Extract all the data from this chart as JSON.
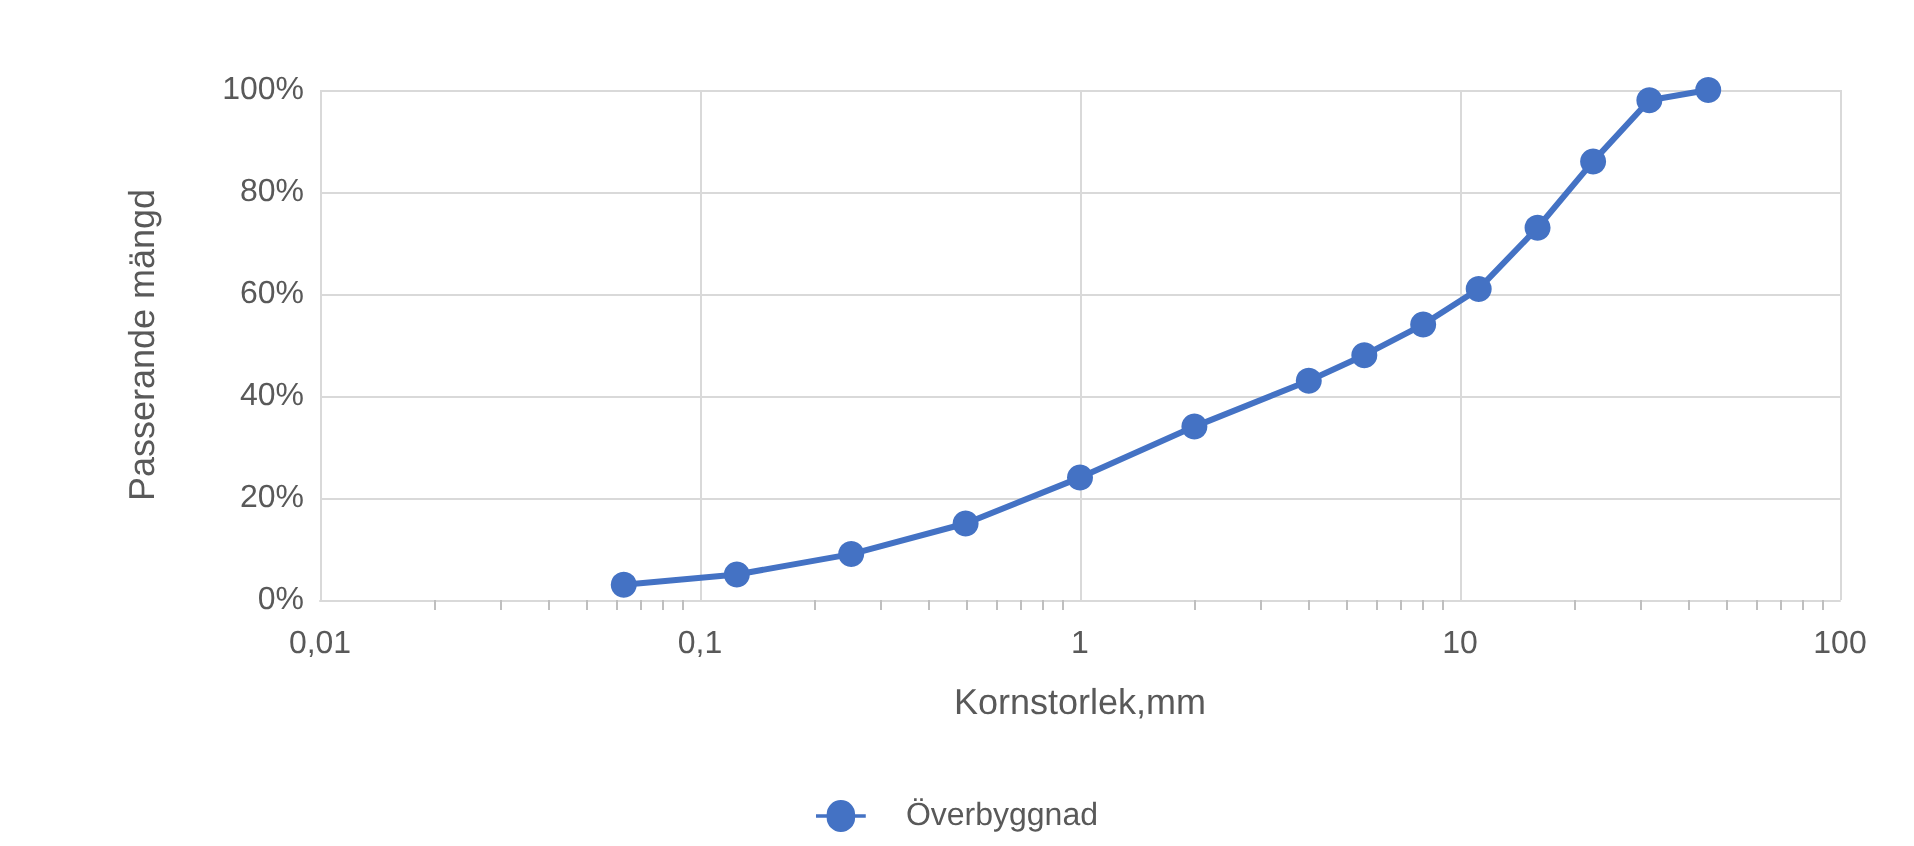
{
  "chart_data": {
    "type": "line",
    "xlabel": "Kornstorlek,mm",
    "ylabel": "Passerande mängd",
    "x": [
      0.063,
      0.125,
      0.25,
      0.5,
      1,
      2,
      4,
      5.6,
      8,
      11.2,
      16,
      22.4,
      31.5,
      45
    ],
    "series": [
      {
        "name": "Överbyggnad",
        "color": "#4472c4",
        "values": [
          3,
          5,
          9,
          15,
          24,
          34,
          43,
          48,
          54,
          61,
          73,
          86,
          98,
          100
        ]
      }
    ],
    "log": "x",
    "xlim": [
      0.01,
      100
    ],
    "xticks": [
      {
        "value": 0.01,
        "label": "0,01"
      },
      {
        "value": 0.1,
        "label": "0,1"
      },
      {
        "value": 1,
        "label": "1"
      },
      {
        "value": 10,
        "label": "10"
      },
      {
        "value": 100,
        "label": "100"
      }
    ],
    "ylim": [
      0,
      100
    ],
    "yticks": [
      {
        "value": 0,
        "label": "0%"
      },
      {
        "value": 20,
        "label": "20%"
      },
      {
        "value": 40,
        "label": "40%"
      },
      {
        "value": 60,
        "label": "60%"
      },
      {
        "value": 80,
        "label": "80%"
      },
      {
        "value": 100,
        "label": "100%"
      }
    ],
    "grid": true,
    "legend": "bottom",
    "marker": "circle",
    "line_style": "solid"
  }
}
